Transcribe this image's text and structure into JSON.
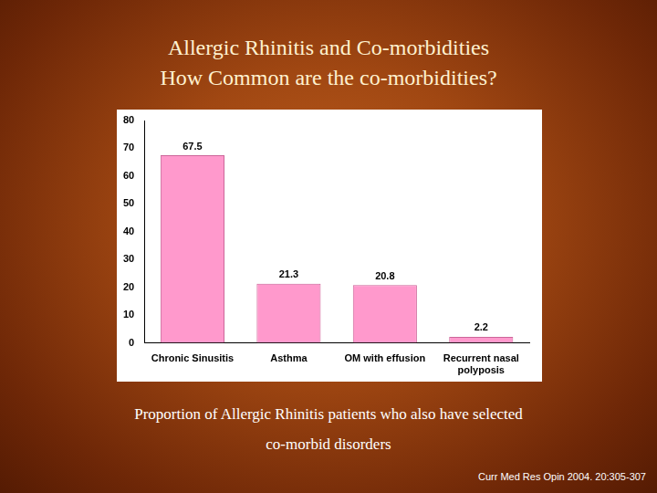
{
  "chart_data": {
    "type": "bar",
    "title": "Allergic Rhinitis and Co-morbidities",
    "subtitle": "How Common are the co-morbidities?",
    "categories": [
      "Chronic Sinusitis",
      "Asthma",
      "OM with effusion",
      "Recurrent nasal polyposis"
    ],
    "values": [
      67.5,
      21.3,
      20.8,
      2.2
    ],
    "color": "#ff99cc",
    "ylim": [
      0,
      80
    ],
    "yticks": [
      0,
      10,
      20,
      30,
      40,
      50,
      60,
      70,
      80
    ],
    "grid": false,
    "data_labels": true,
    "annotations": [
      "Proportion of Allergic Rhinitis patients who also have selected co-morbid disorders",
      "Curr Med Res Opin 2004. 20:305-307"
    ]
  }
}
